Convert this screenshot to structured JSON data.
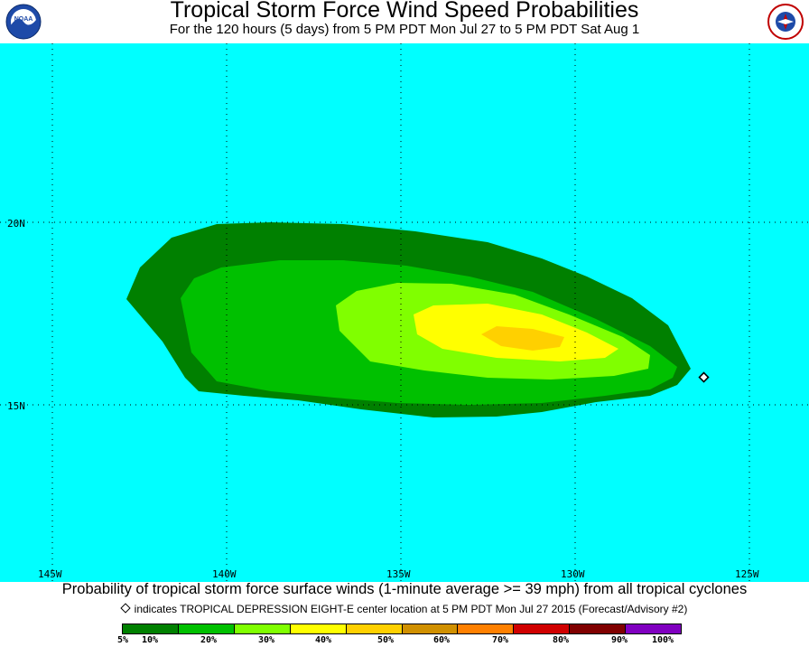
{
  "header": {
    "title": "Tropical Storm Force Wind Speed Probabilities",
    "subtitle": "For the 120 hours (5 days) from 5 PM PDT Mon Jul 27 to 5 PM PDT Sat Aug 1",
    "left_logo_text": "NOAA",
    "right_logo_text": "NATIONAL WEATHER SERVICE"
  },
  "map": {
    "ocean_color": "#00ffff",
    "lat_labels": [
      "20N",
      "15N"
    ],
    "lon_labels": [
      "145W",
      "140W",
      "135W",
      "130W",
      "125W"
    ],
    "storm_marker": {
      "lat": 15.8,
      "lon": 126.2,
      "symbol": "diamond"
    },
    "bands": [
      {
        "level": "5%",
        "color": "#008000"
      },
      {
        "level": "10%",
        "color": "#00c000"
      },
      {
        "level": "20%",
        "color": "#80ff00"
      },
      {
        "level": "30%",
        "color": "#ffff00"
      },
      {
        "level": "40%",
        "color": "#ffd000"
      }
    ]
  },
  "caption": "Probability of tropical storm force surface winds (1-minute average >= 39 mph) from all tropical cyclones",
  "note": "indicates TROPICAL DEPRESSION EIGHT-E center location at 5 PM PDT Mon Jul 27 2015 (Forecast/Advisory #2)",
  "legend": {
    "colors": [
      "#008000",
      "#00c000",
      "#80ff00",
      "#ffff00",
      "#ffd000",
      "#d09000",
      "#ff8000",
      "#d00000",
      "#800000",
      "#8000c0"
    ],
    "labels": [
      "5%",
      "10%",
      "20%",
      "30%",
      "40%",
      "50%",
      "60%",
      "70%",
      "80%",
      "90%",
      "100%"
    ]
  }
}
